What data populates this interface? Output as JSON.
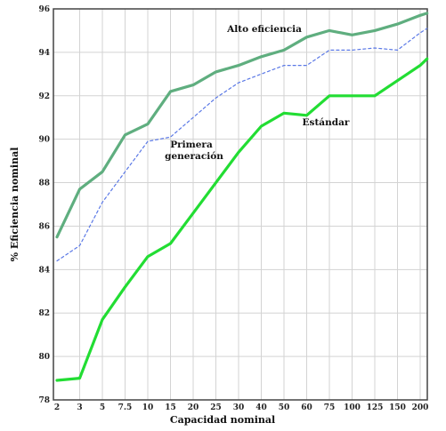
{
  "chart_data": {
    "type": "line",
    "xlabel": "Capacidad nominal",
    "ylabel": "% Eficiencia nominal",
    "categories": [
      "2",
      "3",
      "5",
      "7.5",
      "10",
      "15",
      "20",
      "25",
      "30",
      "40",
      "50",
      "60",
      "75",
      "100",
      "125",
      "150",
      "200"
    ],
    "y_ticks": [
      78,
      80,
      82,
      84,
      86,
      88,
      90,
      92,
      94,
      96
    ],
    "ylim": [
      78,
      96
    ],
    "grid": true,
    "series": [
      {
        "name": "Alto eficiencia",
        "labels": [
          "Alto eficiencia"
        ],
        "color": "#5fae7f",
        "style": "solid",
        "x": [
          0,
          1,
          2,
          3,
          4,
          5,
          6,
          7,
          8,
          9,
          10,
          11,
          12,
          13,
          14,
          15,
          16,
          16.3
        ],
        "values": [
          85.5,
          87.7,
          88.5,
          90.2,
          90.7,
          92.2,
          92.5,
          93.1,
          93.4,
          93.8,
          94.1,
          94.7,
          95.0,
          94.8,
          95.0,
          95.3,
          95.7,
          95.8
        ]
      },
      {
        "name": "Primera generación",
        "labels": [
          "Primera",
          "generación"
        ],
        "color": "#5a78e6",
        "style": "dashed",
        "x": [
          0,
          1,
          2,
          3,
          4,
          5,
          6,
          7,
          8,
          9,
          10,
          11,
          12,
          13,
          14,
          15,
          16,
          16.3
        ],
        "values": [
          84.4,
          85.1,
          87.1,
          88.5,
          89.9,
          90.1,
          91.0,
          91.9,
          92.6,
          93.0,
          93.4,
          93.4,
          94.1,
          94.1,
          94.2,
          94.1,
          94.9,
          95.1
        ]
      },
      {
        "name": "Estándar",
        "labels": [
          "Estándar"
        ],
        "color": "#22dd33",
        "style": "solid",
        "x": [
          0,
          1,
          2,
          3,
          4,
          5,
          6,
          7,
          8,
          9,
          10,
          11,
          12,
          13,
          14,
          15,
          16,
          16.3
        ],
        "values": [
          78.9,
          79.0,
          81.7,
          83.2,
          84.6,
          85.2,
          86.6,
          88.0,
          89.4,
          90.6,
          91.2,
          91.1,
          92.0,
          92.0,
          92.0,
          92.7,
          93.4,
          93.7
        ]
      }
    ]
  }
}
